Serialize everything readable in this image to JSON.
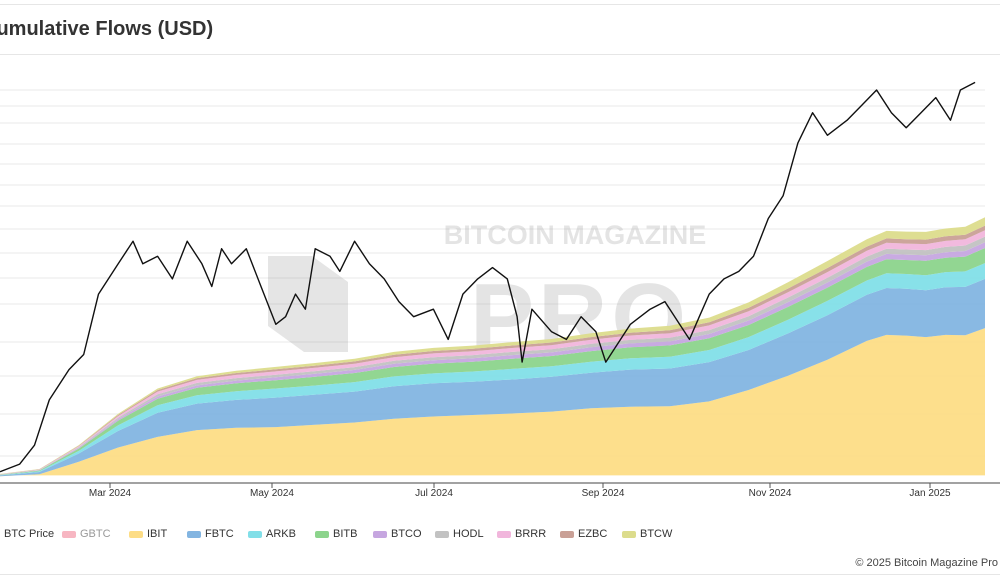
{
  "chart_data": {
    "type": "area",
    "title": "Cumulative Flows (USD)",
    "x_tick_labels": [
      "Mar 2024",
      "May 2024",
      "Jul 2024",
      "Sep 2024",
      "Nov 2024",
      "Jan 2025"
    ],
    "x": [
      0,
      0.04,
      0.08,
      0.12,
      0.16,
      0.2,
      0.24,
      0.28,
      0.32,
      0.36,
      0.4,
      0.44,
      0.48,
      0.52,
      0.56,
      0.6,
      0.64,
      0.68,
      0.72,
      0.76,
      0.8,
      0.84,
      0.88,
      0.9,
      0.92,
      0.94,
      0.96,
      0.98,
      1.0
    ],
    "series": [
      {
        "name": "IBIT",
        "color": "#fddd86",
        "values": [
          -0.1,
          0.15,
          1.8,
          3.7,
          5.1,
          6.0,
          6.3,
          6.4,
          6.7,
          7.0,
          7.5,
          7.8,
          8.0,
          8.2,
          8.45,
          8.9,
          9.1,
          9.15,
          9.8,
          11.3,
          13.2,
          15.3,
          17.8,
          18.6,
          18.5,
          18.3,
          18.6,
          18.55,
          19.5
        ]
      },
      {
        "name": "FBTC",
        "color": "#83b5e1",
        "values": [
          0.1,
          0.3,
          1.1,
          2.2,
          3.2,
          3.5,
          3.7,
          3.9,
          4.0,
          4.1,
          4.3,
          4.4,
          4.4,
          4.5,
          4.6,
          4.7,
          4.9,
          5.0,
          5.2,
          5.3,
          5.6,
          5.9,
          6.1,
          6.2,
          6.2,
          6.2,
          6.3,
          6.4,
          6.5
        ]
      },
      {
        "name": "ARKB",
        "color": "#82dfe8",
        "values": [
          0.05,
          0.1,
          0.35,
          0.75,
          1.0,
          1.1,
          1.15,
          1.2,
          1.2,
          1.25,
          1.3,
          1.3,
          1.35,
          1.4,
          1.4,
          1.45,
          1.5,
          1.55,
          1.6,
          1.7,
          1.8,
          1.9,
          1.9,
          1.95,
          1.95,
          2.0,
          2.0,
          2.05,
          2.1
        ]
      },
      {
        "name": "BITB",
        "color": "#8cd48c",
        "values": [
          0.05,
          0.1,
          0.3,
          0.6,
          0.85,
          1.0,
          1.05,
          1.1,
          1.15,
          1.2,
          1.25,
          1.3,
          1.3,
          1.35,
          1.35,
          1.4,
          1.45,
          1.5,
          1.55,
          1.6,
          1.7,
          1.75,
          1.8,
          1.85,
          1.85,
          1.9,
          1.9,
          1.95,
          2.0
        ]
      },
      {
        "name": "BTCO",
        "color": "#c6a6e0",
        "values": [
          0.02,
          0.04,
          0.1,
          0.2,
          0.3,
          0.32,
          0.35,
          0.38,
          0.4,
          0.42,
          0.44,
          0.45,
          0.46,
          0.47,
          0.48,
          0.5,
          0.52,
          0.54,
          0.56,
          0.6,
          0.64,
          0.68,
          0.7,
          0.72,
          0.72,
          0.73,
          0.74,
          0.75,
          0.76
        ]
      },
      {
        "name": "HODL",
        "color": "#c2c2c2",
        "values": [
          0.02,
          0.04,
          0.1,
          0.2,
          0.3,
          0.32,
          0.33,
          0.34,
          0.35,
          0.36,
          0.38,
          0.4,
          0.41,
          0.42,
          0.43,
          0.45,
          0.47,
          0.49,
          0.52,
          0.56,
          0.6,
          0.64,
          0.66,
          0.68,
          0.68,
          0.69,
          0.7,
          0.72,
          0.74
        ]
      },
      {
        "name": "BRRR",
        "color": "#f1b6dc",
        "values": [
          0.02,
          0.04,
          0.1,
          0.22,
          0.35,
          0.4,
          0.42,
          0.44,
          0.45,
          0.46,
          0.48,
          0.5,
          0.51,
          0.52,
          0.53,
          0.55,
          0.57,
          0.59,
          0.62,
          0.66,
          0.7,
          0.74,
          0.76,
          0.78,
          0.78,
          0.79,
          0.8,
          0.82,
          0.84
        ]
      },
      {
        "name": "EZBC",
        "color": "#c9a096",
        "values": [
          0.02,
          0.04,
          0.08,
          0.14,
          0.2,
          0.24,
          0.26,
          0.28,
          0.29,
          0.3,
          0.31,
          0.32,
          0.33,
          0.34,
          0.35,
          0.36,
          0.38,
          0.4,
          0.42,
          0.46,
          0.5,
          0.54,
          0.56,
          0.58,
          0.58,
          0.59,
          0.6,
          0.61,
          0.62
        ]
      },
      {
        "name": "BTCW",
        "color": "#dcdc8c",
        "values": [
          0.02,
          0.04,
          0.08,
          0.14,
          0.2,
          0.24,
          0.28,
          0.32,
          0.34,
          0.36,
          0.38,
          0.4,
          0.42,
          0.44,
          0.46,
          0.5,
          0.54,
          0.58,
          0.62,
          0.72,
          0.82,
          0.92,
          0.98,
          1.0,
          1.0,
          1.02,
          1.04,
          1.06,
          1.1
        ]
      }
    ],
    "price_series": {
      "name": "BTC Price",
      "color": "#111111",
      "points": [
        [
          0,
          0.5
        ],
        [
          0.02,
          1.5
        ],
        [
          0.035,
          4
        ],
        [
          0.05,
          10
        ],
        [
          0.07,
          14
        ],
        [
          0.085,
          16
        ],
        [
          0.1,
          24
        ],
        [
          0.12,
          28
        ],
        [
          0.135,
          31
        ],
        [
          0.145,
          28
        ],
        [
          0.16,
          29
        ],
        [
          0.175,
          26
        ],
        [
          0.19,
          31
        ],
        [
          0.205,
          28
        ],
        [
          0.215,
          25
        ],
        [
          0.225,
          30
        ],
        [
          0.235,
          28
        ],
        [
          0.25,
          30
        ],
        [
          0.265,
          25
        ],
        [
          0.28,
          20
        ],
        [
          0.29,
          21
        ],
        [
          0.3,
          24
        ],
        [
          0.31,
          22
        ],
        [
          0.32,
          30
        ],
        [
          0.335,
          29
        ],
        [
          0.345,
          27
        ],
        [
          0.36,
          31
        ],
        [
          0.375,
          28
        ],
        [
          0.39,
          26
        ],
        [
          0.405,
          23
        ],
        [
          0.42,
          21
        ],
        [
          0.44,
          22
        ],
        [
          0.455,
          18
        ],
        [
          0.47,
          24
        ],
        [
          0.485,
          26
        ],
        [
          0.5,
          27.5
        ],
        [
          0.515,
          26
        ],
        [
          0.525,
          21
        ],
        [
          0.53,
          15
        ],
        [
          0.54,
          22
        ],
        [
          0.56,
          19
        ],
        [
          0.575,
          18
        ],
        [
          0.59,
          21
        ],
        [
          0.605,
          19
        ],
        [
          0.615,
          15
        ],
        [
          0.625,
          17
        ],
        [
          0.64,
          20
        ],
        [
          0.66,
          22
        ],
        [
          0.675,
          23
        ],
        [
          0.69,
          20
        ],
        [
          0.7,
          18
        ],
        [
          0.71,
          21
        ],
        [
          0.72,
          24
        ],
        [
          0.735,
          26
        ],
        [
          0.75,
          27
        ],
        [
          0.765,
          29
        ],
        [
          0.78,
          34
        ],
        [
          0.795,
          37
        ],
        [
          0.81,
          44
        ],
        [
          0.825,
          48
        ],
        [
          0.84,
          45
        ],
        [
          0.86,
          47
        ],
        [
          0.875,
          49
        ],
        [
          0.89,
          51
        ],
        [
          0.905,
          48
        ],
        [
          0.92,
          46
        ],
        [
          0.935,
          48
        ],
        [
          0.95,
          50
        ],
        [
          0.965,
          47
        ],
        [
          0.975,
          51
        ],
        [
          0.99,
          52
        ]
      ]
    },
    "y_range": [
      -1,
      51
    ],
    "legend_position": "bottom-left",
    "grid": true
  },
  "legend": [
    {
      "label": "BTC Price",
      "type": "line",
      "color": "#111111",
      "dim": false
    },
    {
      "label": "GBTC",
      "type": "area",
      "color": "#f7b6c2",
      "dim": true
    },
    {
      "label": "IBIT",
      "type": "area",
      "color": "#fddd86",
      "dim": false
    },
    {
      "label": "FBTC",
      "type": "area",
      "color": "#83b5e1",
      "dim": false
    },
    {
      "label": "ARKB",
      "type": "area",
      "color": "#82dfe8",
      "dim": false
    },
    {
      "label": "BITB",
      "type": "area",
      "color": "#8cd48c",
      "dim": false
    },
    {
      "label": "BTCO",
      "type": "area",
      "color": "#c6a6e0",
      "dim": false
    },
    {
      "label": "HODL",
      "type": "area",
      "color": "#c2c2c2",
      "dim": false
    },
    {
      "label": "BRRR",
      "type": "area",
      "color": "#f1b6dc",
      "dim": false
    },
    {
      "label": "EZBC",
      "type": "area",
      "color": "#c9a096",
      "dim": false
    },
    {
      "label": "BTCW",
      "type": "area",
      "color": "#dcdc8c",
      "dim": false
    }
  ],
  "watermark": {
    "line1": "BITCOIN MAGAZINE",
    "line2": "PRO"
  },
  "copyright": "© 2025 Bitcoin Magazine Pro"
}
